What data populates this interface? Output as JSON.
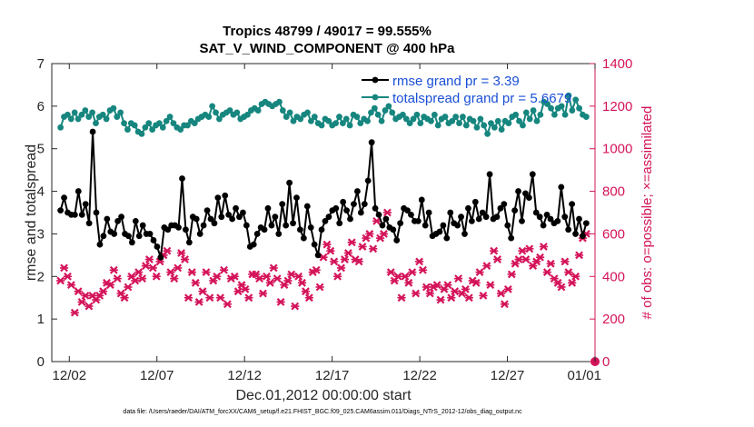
{
  "chart_data": {
    "type": "line",
    "title": "Tropics 48799 / 49017 = 99.555%",
    "subtitle": "SAT_V_WIND_COMPONENT @ 400 hPa",
    "xlabel": "Dec.01,2012 00:00:00 start",
    "ylabel_left": "rmse and totalspread",
    "ylabel_right": "# of obs: o=possible; ×=assimilated",
    "footnote": "data file: /Users/raeder/DAI/ATM_forcXX/CAM6_setup/f.e21.FHIST_BGC.f09_025.CAM6assim.011/Diags_NTrS_2012-12/obs_diag_output.nc",
    "x_range": [
      0,
      31
    ],
    "x_ticks": [
      1,
      6,
      11,
      16,
      21,
      26,
      31
    ],
    "x_tick_labels": [
      "12/02",
      "12/07",
      "12/12",
      "12/17",
      "12/22",
      "12/27",
      "01/01"
    ],
    "ylim_left": [
      0,
      7
    ],
    "ylim_right": [
      0,
      1400
    ],
    "y_ticks_left": [
      0,
      1,
      2,
      3,
      4,
      5,
      6,
      7
    ],
    "y_ticks_right": [
      0,
      200,
      400,
      600,
      800,
      1000,
      1200,
      1400
    ],
    "legend_position": "top-right",
    "colors": {
      "rmse": "#000000",
      "spread": "#16867f",
      "obs": "#d4145a",
      "right_axis": "#d4145a",
      "legend_text": "#1a4fd6"
    },
    "series": [
      {
        "name": "rmse grand pr = 3.39",
        "axis": "left",
        "color": "#000000",
        "values": [
          3.55,
          3.85,
          3.5,
          3.45,
          3.45,
          4.0,
          3.45,
          3.7,
          3.25,
          5.4,
          3.5,
          2.75,
          2.95,
          3.35,
          3.05,
          3.0,
          3.3,
          3.4,
          3.0,
          2.95,
          2.8,
          3.3,
          2.95,
          3.2,
          3.0,
          3.0,
          2.85,
          2.7,
          2.45,
          3.15,
          3.1,
          3.2,
          3.2,
          3.15,
          4.3,
          3.1,
          2.8,
          3.4,
          3.35,
          3.0,
          3.2,
          3.55,
          3.35,
          3.25,
          3.85,
          3.4,
          3.9,
          3.45,
          3.35,
          3.6,
          3.4,
          3.5,
          3.2,
          2.7,
          2.75,
          3.0,
          3.15,
          3.1,
          3.6,
          3.2,
          3.4,
          3.0,
          3.7,
          3.2,
          4.2,
          3.25,
          3.85,
          3.1,
          2.9,
          3.65,
          3.15,
          2.75,
          2.5,
          3.1,
          3.3,
          3.4,
          3.55,
          3.6,
          3.25,
          3.75,
          3.55,
          3.35,
          3.7,
          4.0,
          3.5,
          3.7,
          4.25,
          5.15,
          3.6,
          3.45,
          3.2,
          3.35,
          3.15,
          3.1,
          2.85,
          3.25,
          3.6,
          3.55,
          3.45,
          3.3,
          3.3,
          3.8,
          3.2,
          3.5,
          2.95,
          3.0,
          3.05,
          3.2,
          2.9,
          3.5,
          3.25,
          3.2,
          3.4,
          3.0,
          3.6,
          3.3,
          3.75,
          3.35,
          3.5,
          3.4,
          4.4,
          3.35,
          3.4,
          3.6,
          3.7,
          3.2,
          2.9,
          3.55,
          4.0,
          3.3,
          3.95,
          3.85,
          4.4,
          3.5,
          3.4,
          3.2,
          3.45,
          3.35,
          3.25,
          3.3,
          4.1,
          3.4,
          3.1,
          3.7,
          3.0,
          3.35,
          2.95,
          3.25
        ]
      },
      {
        "name": "totalspread grand pr = 5.6679",
        "axis": "left",
        "color": "#16867f",
        "values": [
          5.5,
          5.75,
          5.8,
          5.7,
          5.85,
          5.7,
          5.8,
          5.9,
          5.75,
          5.85,
          5.6,
          5.75,
          5.8,
          5.7,
          5.9,
          5.95,
          5.75,
          5.85,
          5.6,
          5.45,
          5.6,
          5.55,
          5.4,
          5.35,
          5.5,
          5.6,
          5.45,
          5.55,
          5.6,
          5.5,
          5.65,
          5.75,
          5.6,
          5.5,
          5.45,
          5.55,
          5.55,
          5.65,
          5.6,
          5.7,
          5.75,
          5.8,
          5.75,
          6.0,
          5.85,
          5.7,
          5.8,
          5.85,
          5.9,
          5.8,
          5.85,
          5.7,
          5.75,
          5.8,
          5.9,
          5.95,
          5.9,
          6.05,
          6.1,
          6.05,
          6.0,
          6.05,
          6.1,
          5.9,
          5.75,
          5.85,
          5.65,
          5.75,
          5.7,
          5.8,
          5.85,
          5.65,
          5.75,
          5.6,
          5.55,
          5.7,
          5.65,
          5.55,
          5.6,
          5.75,
          5.6,
          5.7,
          5.55,
          5.8,
          5.75,
          5.6,
          5.7,
          5.65,
          5.85,
          5.95,
          5.8,
          5.65,
          5.9,
          6.0,
          5.85,
          5.7,
          5.75,
          5.8,
          5.7,
          5.6,
          5.7,
          5.8,
          5.6,
          5.75,
          5.7,
          5.65,
          5.8,
          5.55,
          5.7,
          5.75,
          5.6,
          5.65,
          5.75,
          5.6,
          5.75,
          5.55,
          5.7,
          5.65,
          5.5,
          5.7,
          5.55,
          5.35,
          5.6,
          5.5,
          5.65,
          5.45,
          5.65,
          5.6,
          5.75,
          5.8,
          5.65,
          5.55,
          5.85,
          5.7,
          5.9,
          5.65,
          5.8,
          6.1,
          6.05,
          5.95,
          5.8,
          5.95,
          6.0,
          5.8,
          6.25,
          5.9,
          6.15,
          5.95,
          5.8,
          5.75
        ]
      }
    ],
    "obs_series": {
      "name": "assimilated obs count",
      "axis": "right",
      "marker": "x",
      "color": "#d4145a",
      "values": [
        380,
        440,
        400,
        360,
        230,
        330,
        280,
        310,
        260,
        310,
        290,
        310,
        330,
        370,
        360,
        430,
        390,
        320,
        300,
        350,
        400,
        380,
        420,
        390,
        450,
        480,
        440,
        400,
        470,
        500,
        520,
        420,
        390,
        440,
        510,
        480,
        300,
        420,
        370,
        280,
        330,
        420,
        300,
        380,
        400,
        300,
        430,
        270,
        390,
        400,
        330,
        360,
        340,
        300,
        410,
        410,
        390,
        320,
        400,
        370,
        440,
        390,
        280,
        360,
        380,
        410,
        260,
        400,
        370,
        330,
        300,
        420,
        430,
        350,
        490,
        550,
        520,
        470,
        400,
        440,
        480,
        510,
        560,
        480,
        470,
        540,
        580,
        600,
        530,
        660,
        580,
        600,
        700,
        420,
        380,
        400,
        300,
        400,
        370,
        420,
        320,
        470,
        430,
        350,
        320,
        350,
        360,
        290,
        340,
        360,
        300,
        330,
        390,
        320,
        340,
        300,
        380,
        370,
        420,
        310,
        450,
        360,
        520,
        480,
        320,
        270,
        340,
        410,
        460,
        480,
        520,
        480,
        530,
        450,
        470,
        490,
        540,
        420,
        460,
        390,
        370,
        350,
        470,
        420,
        370,
        400,
        500,
        580,
        600
      ]
    }
  }
}
